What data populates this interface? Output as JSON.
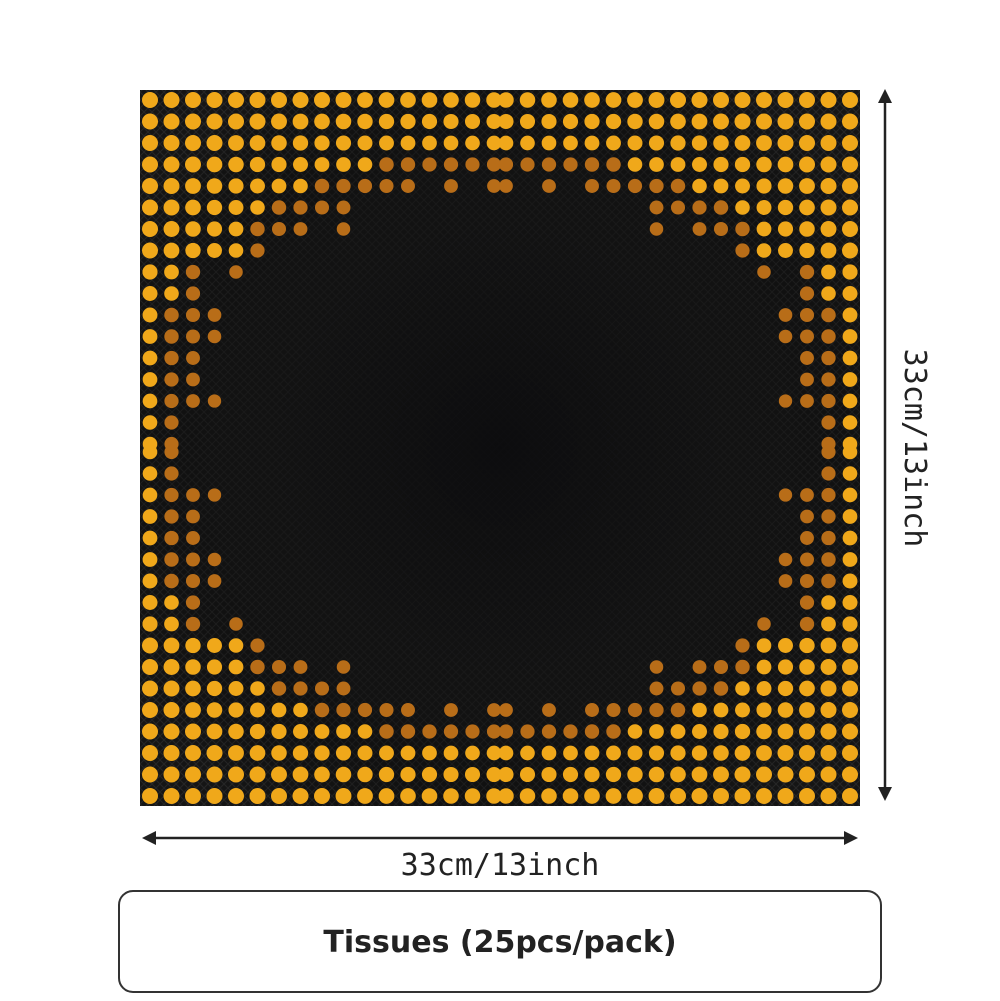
{
  "product": {
    "width_label": "33cm/13inch",
    "height_label": "33cm/13inch",
    "caption": "Tissues (25pcs/pack)"
  }
}
